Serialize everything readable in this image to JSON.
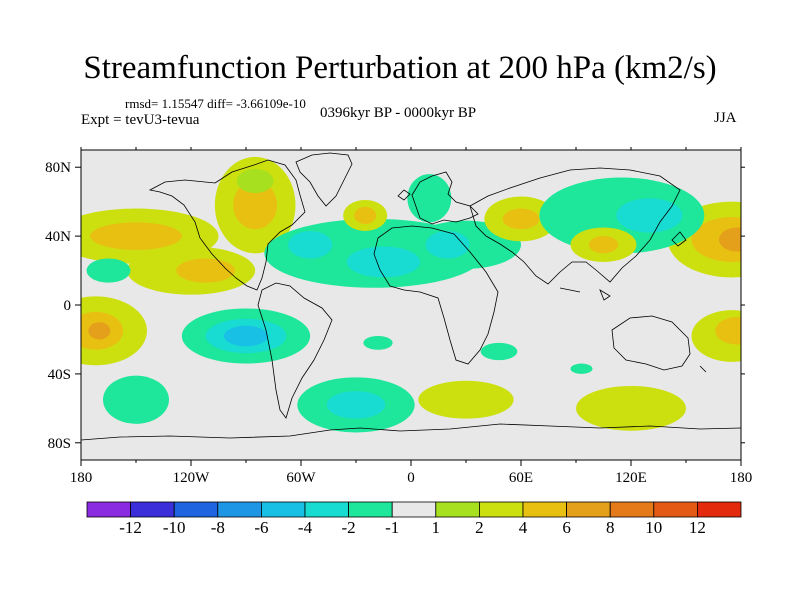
{
  "chart_data": {
    "type": "heatmap",
    "title": "Streamfunction Perturbation at 200 hPa (km2/s)",
    "info": "rmsd= 1.15547 diff= -3.66109e-10",
    "left_label": "Expt = tevU3-tevua",
    "center_label": "0396kyr BP - 0000kyr BP",
    "right_label": "JJA",
    "projection": "cylindrical equidistant",
    "xlim": [
      -180,
      180
    ],
    "ylim": [
      -90,
      90
    ],
    "x_ticks": [
      {
        "value": -180,
        "label": "180"
      },
      {
        "value": -120,
        "label": "120W"
      },
      {
        "value": -60,
        "label": "60W"
      },
      {
        "value": 0,
        "label": "0"
      },
      {
        "value": 60,
        "label": "60E"
      },
      {
        "value": 120,
        "label": "120E"
      },
      {
        "value": 180,
        "label": "180"
      }
    ],
    "y_ticks": [
      {
        "value": 80,
        "label": "80N"
      },
      {
        "value": 40,
        "label": "40N"
      },
      {
        "value": 0,
        "label": "0"
      },
      {
        "value": -40,
        "label": "40S"
      },
      {
        "value": -80,
        "label": "80S"
      }
    ],
    "colorbar": {
      "colors": [
        "#8a2be2",
        "#3a2fd8",
        "#1e64e0",
        "#1e96e6",
        "#18c0e6",
        "#18dcd2",
        "#1ee69a",
        "#e8e8e8",
        "#a6e01e",
        "#cce010",
        "#e8c012",
        "#e4a01a",
        "#e47a1a",
        "#e45a14",
        "#e42a0c"
      ],
      "labels": [
        "-12",
        "-10",
        "-8",
        "-6",
        "-4",
        "-2",
        "-1",
        "1",
        "2",
        "4",
        "6",
        "8",
        "10",
        "12"
      ]
    },
    "regions": [
      {
        "lon": 175,
        "lat": 38,
        "rlon": 35,
        "rlat": 22,
        "level": 2
      },
      {
        "lon": 175,
        "lat": 38,
        "rlon": 22,
        "rlat": 13,
        "level": 4
      },
      {
        "lon": 178,
        "lat": 38,
        "rlon": 10,
        "rlat": 7,
        "level": 6
      },
      {
        "lon": -150,
        "lat": 40,
        "rlon": 45,
        "rlat": 16,
        "level": 2
      },
      {
        "lon": -150,
        "lat": 40,
        "rlon": 25,
        "rlat": 8,
        "level": 4
      },
      {
        "lon": -120,
        "lat": 20,
        "rlon": 35,
        "rlat": 14,
        "level": 2
      },
      {
        "lon": -112,
        "lat": 20,
        "rlon": 16,
        "rlat": 7,
        "level": 4
      },
      {
        "lon": -165,
        "lat": 20,
        "rlon": 12,
        "rlat": 7,
        "level": -1
      },
      {
        "lon": -85,
        "lat": 58,
        "rlon": 22,
        "rlat": 28,
        "level": 2
      },
      {
        "lon": -85,
        "lat": 58,
        "rlon": 12,
        "rlat": 14,
        "level": 4
      },
      {
        "lon": -85,
        "lat": 72,
        "rlon": 10,
        "rlat": 7,
        "level": 1.5
      },
      {
        "lon": -20,
        "lat": 30,
        "rlon": 60,
        "rlat": 20,
        "level": -1
      },
      {
        "lon": -55,
        "lat": 35,
        "rlon": 12,
        "rlat": 8,
        "level": -2
      },
      {
        "lon": -15,
        "lat": 25,
        "rlon": 20,
        "rlat": 9,
        "level": -2
      },
      {
        "lon": 30,
        "lat": 35,
        "rlon": 30,
        "rlat": 14,
        "level": -1
      },
      {
        "lon": 20,
        "lat": 35,
        "rlon": 12,
        "rlat": 8,
        "level": -2
      },
      {
        "lon": 10,
        "lat": 62,
        "rlon": 12,
        "rlat": 14,
        "level": -1
      },
      {
        "lon": -25,
        "lat": 52,
        "rlon": 12,
        "rlat": 9,
        "level": 2
      },
      {
        "lon": -25,
        "lat": 52,
        "rlon": 6,
        "rlat": 5,
        "level": 4
      },
      {
        "lon": 60,
        "lat": 50,
        "rlon": 20,
        "rlat": 13,
        "level": 2
      },
      {
        "lon": 60,
        "lat": 50,
        "rlon": 10,
        "rlat": 6,
        "level": 4
      },
      {
        "lon": 115,
        "lat": 52,
        "rlon": 45,
        "rlat": 22,
        "level": -1
      },
      {
        "lon": 130,
        "lat": 52,
        "rlon": 18,
        "rlat": 10,
        "level": -2
      },
      {
        "lon": 105,
        "lat": 35,
        "rlon": 18,
        "rlat": 10,
        "level": 2
      },
      {
        "lon": 105,
        "lat": 35,
        "rlon": 8,
        "rlat": 5,
        "level": 4
      },
      {
        "lon": -172,
        "lat": -15,
        "rlon": 28,
        "rlat": 20,
        "level": 2
      },
      {
        "lon": -172,
        "lat": -15,
        "rlon": 15,
        "rlat": 11,
        "level": 4
      },
      {
        "lon": -170,
        "lat": -15,
        "rlon": 6,
        "rlat": 5,
        "level": 6
      },
      {
        "lon": -90,
        "lat": -18,
        "rlon": 35,
        "rlat": 16,
        "level": -1
      },
      {
        "lon": -90,
        "lat": -18,
        "rlon": 22,
        "rlat": 10,
        "level": -2
      },
      {
        "lon": -90,
        "lat": -18,
        "rlon": 12,
        "rlat": 6,
        "level": -4
      },
      {
        "lon": -150,
        "lat": -55,
        "rlon": 18,
        "rlat": 14,
        "level": -1
      },
      {
        "lon": -30,
        "lat": -58,
        "rlon": 32,
        "rlat": 16,
        "level": -1
      },
      {
        "lon": -30,
        "lat": -58,
        "rlon": 16,
        "rlat": 8,
        "level": -2
      },
      {
        "lon": -18,
        "lat": -22,
        "rlon": 8,
        "rlat": 4,
        "level": -1
      },
      {
        "lon": 48,
        "lat": -27,
        "rlon": 10,
        "rlat": 5,
        "level": -1
      },
      {
        "lon": 30,
        "lat": -55,
        "rlon": 26,
        "rlat": 11,
        "level": 2
      },
      {
        "lon": 120,
        "lat": -60,
        "rlon": 30,
        "rlat": 13,
        "level": 2
      },
      {
        "lon": 175,
        "lat": -18,
        "rlon": 22,
        "rlat": 15,
        "level": 2
      },
      {
        "lon": 178,
        "lat": -15,
        "rlon": 12,
        "rlat": 8,
        "level": 4
      },
      {
        "lon": 93,
        "lat": -37,
        "rlon": 6,
        "rlat": 3,
        "level": -1
      }
    ]
  }
}
